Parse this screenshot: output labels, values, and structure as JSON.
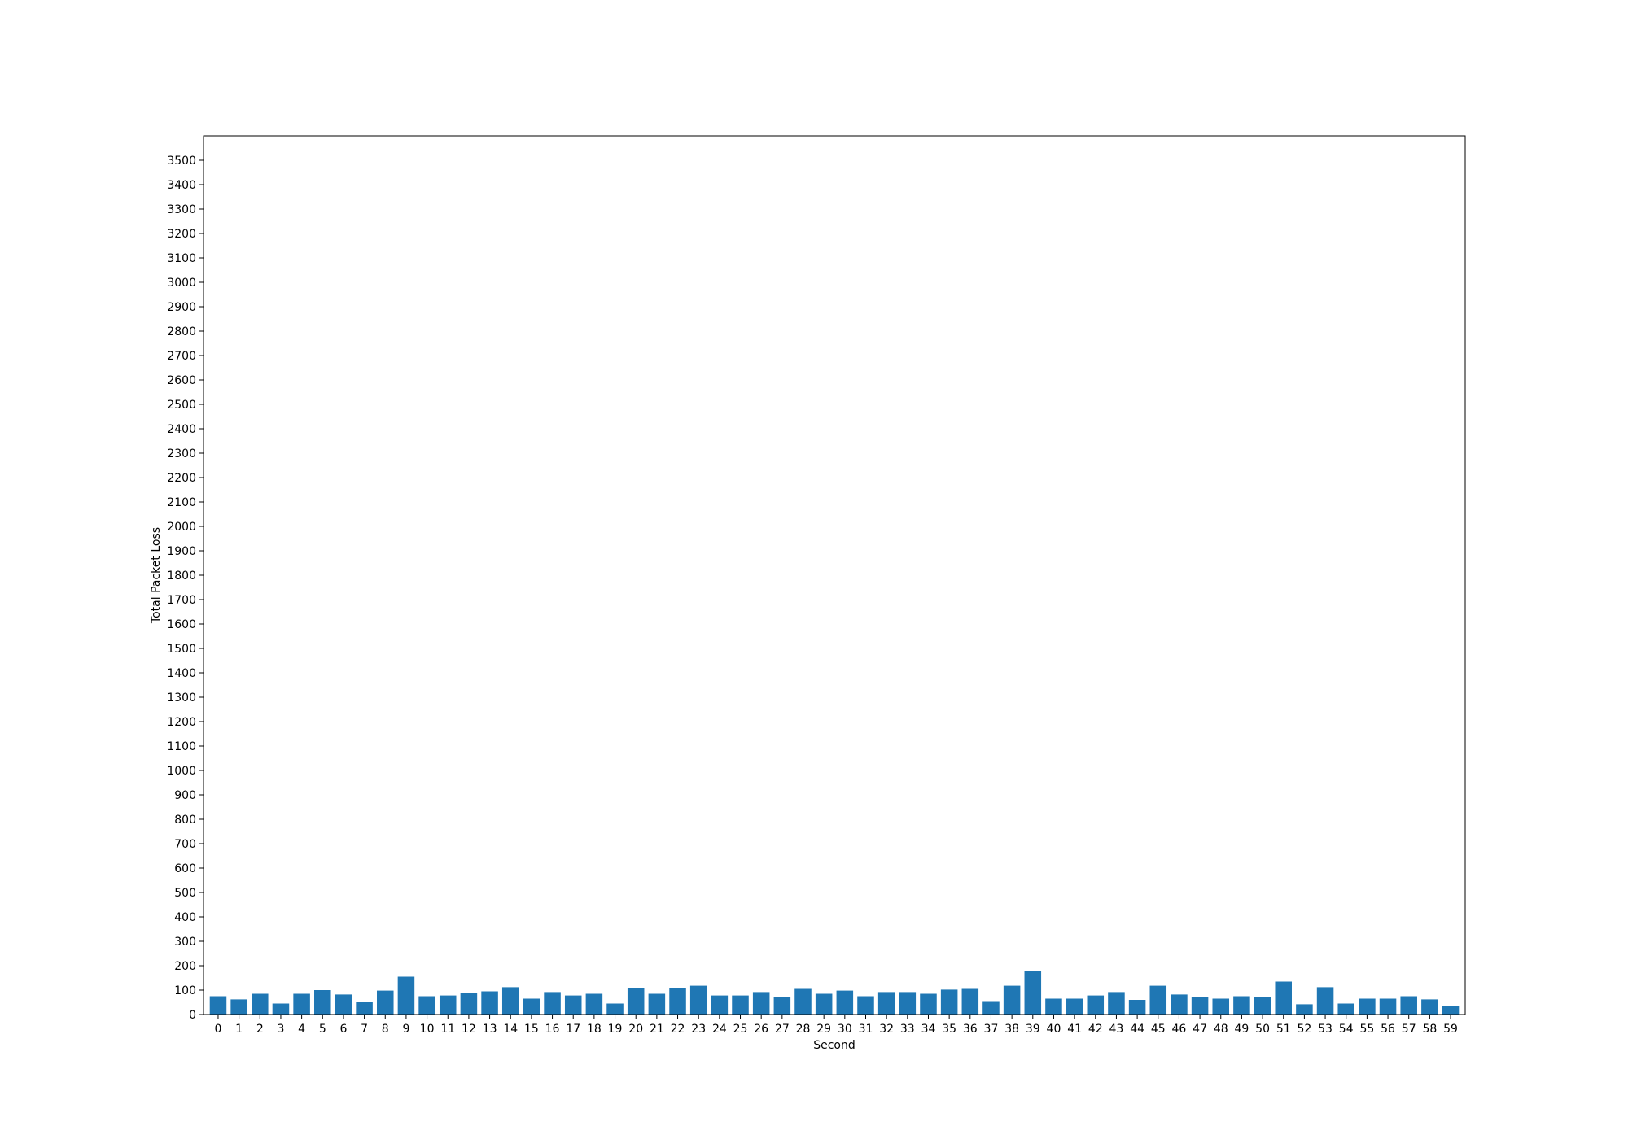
{
  "chart_data": {
    "type": "bar",
    "title": "",
    "xlabel": "Second",
    "ylabel": "Total Packet Loss",
    "categories": [
      "0",
      "1",
      "2",
      "3",
      "4",
      "5",
      "6",
      "7",
      "8",
      "9",
      "10",
      "11",
      "12",
      "13",
      "14",
      "15",
      "16",
      "17",
      "18",
      "19",
      "20",
      "21",
      "22",
      "23",
      "24",
      "25",
      "26",
      "27",
      "28",
      "29",
      "30",
      "31",
      "32",
      "33",
      "34",
      "35",
      "36",
      "37",
      "38",
      "39",
      "40",
      "41",
      "42",
      "43",
      "44",
      "45",
      "46",
      "47",
      "48",
      "49",
      "50",
      "51",
      "52",
      "53",
      "54",
      "55",
      "56",
      "57",
      "58",
      "59"
    ],
    "values": [
      75,
      62,
      85,
      45,
      85,
      100,
      82,
      52,
      98,
      155,
      75,
      78,
      88,
      95,
      112,
      65,
      92,
      78,
      85,
      45,
      108,
      85,
      108,
      118,
      78,
      78,
      92,
      70,
      105,
      85,
      98,
      75,
      92,
      92,
      85,
      102,
      105,
      55,
      118,
      178,
      65,
      65,
      78,
      92,
      60,
      118,
      82,
      72,
      65,
      75,
      72,
      135,
      42,
      112,
      45,
      65,
      65,
      75,
      62,
      35
    ],
    "ylim": [
      0,
      3600
    ],
    "yticks": [
      0,
      100,
      200,
      300,
      400,
      500,
      600,
      700,
      800,
      900,
      1000,
      1100,
      1200,
      1300,
      1400,
      1500,
      1600,
      1700,
      1800,
      1900,
      2000,
      2100,
      2200,
      2300,
      2400,
      2500,
      2600,
      2700,
      2800,
      2900,
      3000,
      3100,
      3200,
      3300,
      3400,
      3500
    ],
    "grid": false,
    "bar_color": "#1f77b4"
  }
}
